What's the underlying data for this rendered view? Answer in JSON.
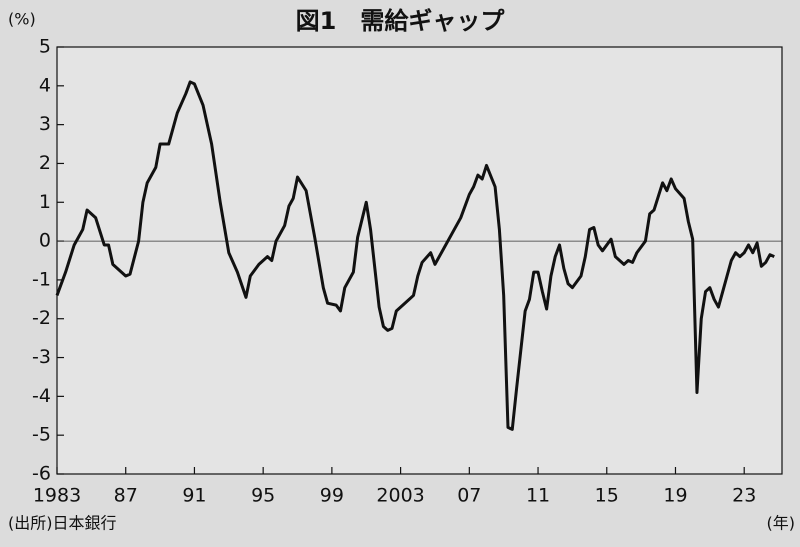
{
  "chart_data": {
    "type": "line",
    "title": "図1　需給ギャップ",
    "y_label": "(%)",
    "x_label": "(年)",
    "source": "(出所)日本銀行",
    "x": [
      1983.0,
      1983.5,
      1984.0,
      1984.5,
      1984.75,
      1985.25,
      1985.75,
      1986.0,
      1986.25,
      1986.75,
      1987.0,
      1987.25,
      1987.75,
      1988.0,
      1988.25,
      1988.75,
      1989.0,
      1989.5,
      1990.0,
      1990.5,
      1990.75,
      1991.0,
      1991.5,
      1992.0,
      1992.5,
      1993.0,
      1993.5,
      1994.0,
      1994.25,
      1994.75,
      1995.25,
      1995.5,
      1995.75,
      1996.25,
      1996.5,
      1996.75,
      1997.0,
      1997.5,
      1998.0,
      1998.5,
      1998.75,
      1999.25,
      1999.5,
      1999.75,
      2000.25,
      2000.5,
      2001.0,
      2001.25,
      2001.75,
      2002.0,
      2002.25,
      2002.5,
      2002.75,
      2003.25,
      2003.75,
      2004.0,
      2004.25,
      2004.75,
      2005.0,
      2005.5,
      2006.0,
      2006.5,
      2007.0,
      2007.25,
      2007.5,
      2007.75,
      2008.0,
      2008.5,
      2008.75,
      2009.0,
      2009.25,
      2009.5,
      2009.75,
      2010.25,
      2010.5,
      2010.75,
      2011.0,
      2011.25,
      2011.5,
      2011.75,
      2012.0,
      2012.25,
      2012.5,
      2012.75,
      2013.0,
      2013.5,
      2013.75,
      2014.0,
      2014.25,
      2014.5,
      2014.75,
      2015.25,
      2015.5,
      2016.0,
      2016.25,
      2016.5,
      2016.75,
      2017.25,
      2017.5,
      2017.75,
      2018.0,
      2018.25,
      2018.5,
      2018.75,
      2019.0,
      2019.5,
      2019.75,
      2020.0,
      2020.25,
      2020.5,
      2020.75,
      2021.0,
      2021.25,
      2021.5,
      2021.75,
      2022.0,
      2022.25,
      2022.5,
      2022.75,
      2023.0,
      2023.25,
      2023.5,
      2023.75,
      2024.0,
      2024.25,
      2024.5,
      2024.75
    ],
    "series": [
      {
        "color": "#111111",
        "values": [
          -1.4,
          -0.8,
          -0.1,
          0.3,
          0.8,
          0.6,
          -0.1,
          -0.1,
          -0.6,
          -0.8,
          -0.9,
          -0.85,
          0.0,
          1.0,
          1.5,
          1.9,
          2.5,
          2.5,
          3.3,
          3.8,
          4.1,
          4.05,
          3.5,
          2.5,
          1.0,
          -0.3,
          -0.8,
          -1.45,
          -0.9,
          -0.6,
          -0.4,
          -0.5,
          0.0,
          0.4,
          0.9,
          1.1,
          1.65,
          1.3,
          0.1,
          -1.2,
          -1.6,
          -1.65,
          -1.8,
          -1.2,
          -0.8,
          0.1,
          1.0,
          0.3,
          -1.7,
          -2.2,
          -2.3,
          -2.25,
          -1.8,
          -1.6,
          -1.4,
          -0.9,
          -0.55,
          -0.3,
          -0.6,
          -0.2,
          0.2,
          0.6,
          1.2,
          1.4,
          1.7,
          1.6,
          1.95,
          1.4,
          0.3,
          -1.4,
          -4.8,
          -4.85,
          -3.8,
          -1.8,
          -1.5,
          -0.8,
          -0.8,
          -1.3,
          -1.75,
          -0.9,
          -0.4,
          -0.1,
          -0.7,
          -1.1,
          -1.2,
          -0.9,
          -0.4,
          0.3,
          0.35,
          -0.1,
          -0.25,
          0.05,
          -0.4,
          -0.6,
          -0.5,
          -0.55,
          -0.3,
          0.0,
          0.7,
          0.8,
          1.15,
          1.5,
          1.3,
          1.6,
          1.35,
          1.1,
          0.5,
          0.05,
          -3.9,
          -2.0,
          -1.3,
          -1.2,
          -1.5,
          -1.7,
          -1.3,
          -0.9,
          -0.5,
          -0.3,
          -0.4,
          -0.3,
          -0.1,
          -0.3,
          -0.05,
          -0.65,
          -0.55,
          -0.35,
          -0.4
        ]
      }
    ],
    "xlim": [
      1983,
      2025.2
    ],
    "ylim": [
      -6,
      5
    ],
    "xticks": [
      1983,
      {
        "value": 1987,
        "label": "87"
      },
      {
        "value": 1991,
        "label": "91"
      },
      {
        "value": 1995,
        "label": "95"
      },
      {
        "value": 1999,
        "label": "99"
      },
      2003,
      {
        "value": 2007,
        "label": "07"
      },
      {
        "value": 2011,
        "label": "11"
      },
      {
        "value": 2015,
        "label": "15"
      },
      {
        "value": 2019,
        "label": "19"
      },
      {
        "value": 2023,
        "label": "23"
      }
    ],
    "yticks": [
      -6,
      -5,
      -4,
      -3,
      -2,
      -1,
      0,
      1,
      2,
      3,
      4,
      5
    ]
  }
}
